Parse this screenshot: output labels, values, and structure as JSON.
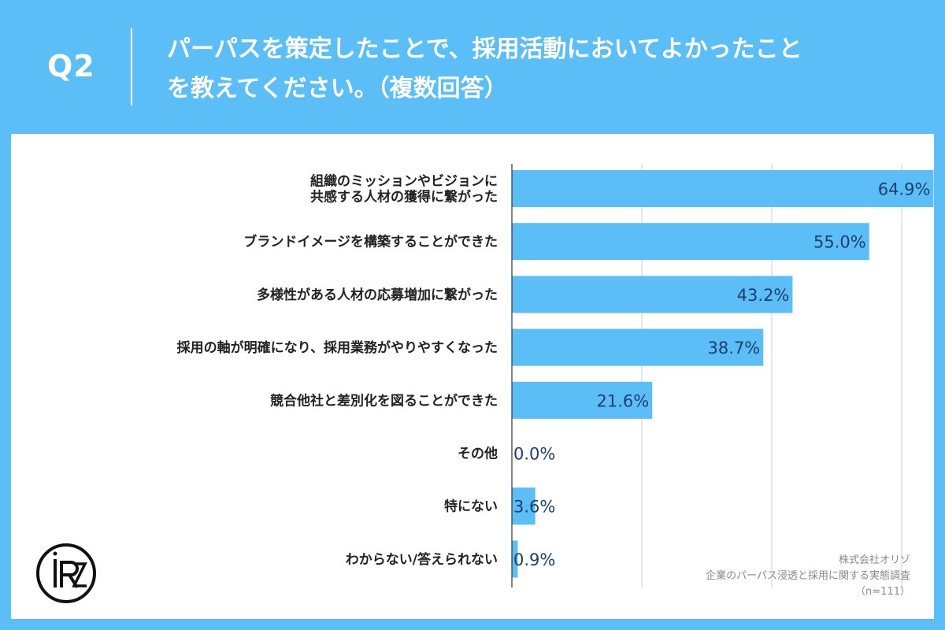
{
  "header": {
    "question_label": "Q2",
    "title": "パーパスを策定したことで、採用活動においてよかったこと\nを教えてください。（複数回答）"
  },
  "chart_data": {
    "type": "bar",
    "orientation": "horizontal",
    "categories": [
      "組織のミッションやビジョンに\n共感する人材の獲得に繋がった",
      "ブランドイメージを構築することができた",
      "多様性がある人材の応募増加に繋がった",
      "採用の軸が明確になり、採用業務がやりやすくなった",
      "競合他社と差別化を図ることができた",
      "その他",
      "特にない",
      "わからない/答えられない"
    ],
    "values": [
      64.9,
      55.0,
      43.2,
      38.7,
      21.6,
      0.0,
      3.6,
      0.9
    ],
    "value_labels": [
      "64.9%",
      "55.0%",
      "43.2%",
      "38.7%",
      "21.6%",
      "0.0%",
      "3.6%",
      "0.9%"
    ],
    "xlim": [
      0,
      80
    ],
    "grid": true,
    "bar_color": "#5bbef7",
    "label_color": "#1d3f6e"
  },
  "footer": {
    "company": "株式会社オリゾ",
    "survey": "企業のパーパス浸透と採用に関する実態調査",
    "sample": "（n=111）"
  },
  "colors": {
    "background": "#5bbef7",
    "panel": "#ffffff"
  }
}
